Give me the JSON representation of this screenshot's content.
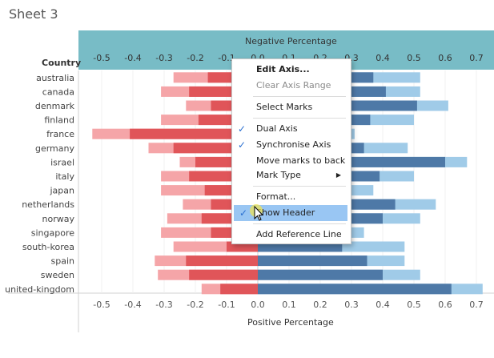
{
  "sheet": {
    "title": "Sheet 3"
  },
  "colors": {
    "header_band": "#78bcc6",
    "negative_light": "#f5a5a8",
    "negative_dark": "#e05559",
    "positive_dark": "#4e79a7",
    "positive_light": "#a0cbe8",
    "menu_highlight": "#99c6f3"
  },
  "chart_data": {
    "type": "bar",
    "title": "Sheet 3",
    "row_header": "Country",
    "top_axis_title": "Negative Percentage",
    "bottom_axis_title": "Positive Percentage",
    "xlim": [
      -0.55,
      0.72
    ],
    "ticks": [
      "-0.5",
      "-0.4",
      "-0.3",
      "-0.2",
      "-0.1",
      "0.0",
      "0.1",
      "0.2",
      "0.3",
      "0.4",
      "0.5",
      "0.6",
      "0.7"
    ],
    "tick_values": [
      -0.5,
      -0.4,
      -0.3,
      -0.2,
      -0.1,
      0.0,
      0.1,
      0.2,
      0.3,
      0.4,
      0.5,
      0.6,
      0.7
    ],
    "categories": [
      "australia",
      "canada",
      "denmark",
      "finland",
      "france",
      "germany",
      "israel",
      "italy",
      "japan",
      "netherlands",
      "norway",
      "singapore",
      "south-korea",
      "spain",
      "sweden",
      "united-kingdom"
    ],
    "series": [
      {
        "values": [
          -0.27,
          -0.31,
          -0.23,
          -0.31,
          -0.53,
          -0.35,
          -0.25,
          -0.31,
          -0.31,
          -0.24,
          -0.29,
          -0.31,
          -0.27,
          -0.33,
          -0.32,
          -0.18
        ]
      },
      {
        "values": [
          -0.16,
          -0.22,
          -0.15,
          -0.19,
          -0.41,
          -0.27,
          -0.2,
          -0.22,
          -0.17,
          -0.15,
          -0.18,
          -0.15,
          -0.1,
          -0.23,
          -0.22,
          -0.12
        ]
      },
      {
        "values": [
          0.37,
          0.41,
          0.51,
          0.36,
          0.3,
          0.34,
          0.6,
          0.39,
          0.3,
          0.44,
          0.4,
          0.28,
          0.27,
          0.35,
          0.4,
          0.62
        ]
      },
      {
        "values": [
          0.52,
          0.52,
          0.61,
          0.5,
          0.31,
          0.48,
          0.67,
          0.5,
          0.37,
          0.57,
          0.52,
          0.34,
          0.47,
          0.47,
          0.52,
          0.72
        ]
      }
    ]
  },
  "context_menu": {
    "items": [
      {
        "label": "Edit Axis...",
        "bold": true
      },
      {
        "label": "Clear Axis Range",
        "disabled": true
      },
      {
        "label": "Select Marks"
      },
      {
        "label": "Dual Axis",
        "checked": true
      },
      {
        "label": "Synchronise Axis",
        "checked": true
      },
      {
        "label": "Move marks to back"
      },
      {
        "label": "Mark Type",
        "submenu": true
      },
      {
        "label": "Format..."
      },
      {
        "label": "Show Header",
        "checked": true,
        "highlighted": true
      },
      {
        "label": "Add Reference Line"
      }
    ],
    "check_glyph": "✓",
    "submenu_glyph": "▶"
  }
}
